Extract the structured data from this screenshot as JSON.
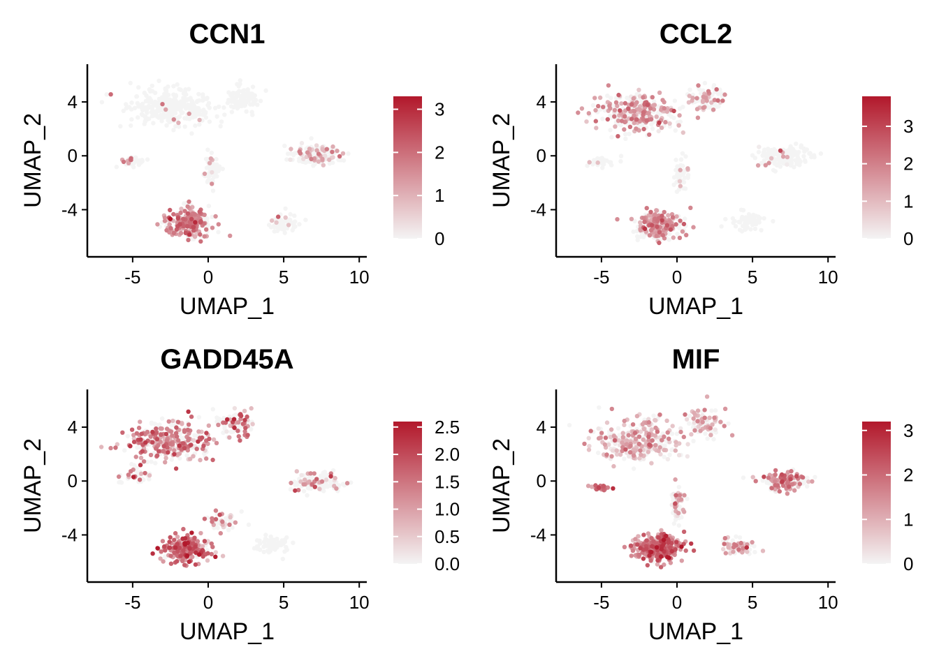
{
  "colors": {
    "low": "#f4f4f4",
    "high": "#b2182b",
    "axis": "#000000"
  },
  "chart_data": [
    {
      "type": "scatter",
      "title": "CCN1",
      "xlabel": "UMAP_1",
      "ylabel": "UMAP_2",
      "xlim": [
        -8,
        10.5
      ],
      "ylim": [
        -7.5,
        6.8
      ],
      "xticks": [
        "-5",
        "0",
        "5",
        "10"
      ],
      "yticks": [
        "4",
        "0",
        "-4"
      ],
      "legend": {
        "max": 3.3,
        "ticks": [
          "3",
          "2",
          "1",
          "0"
        ]
      },
      "clusters": [
        {
          "x": -2.5,
          "y": 3.6,
          "sx": 2.3,
          "sy": 1.1,
          "n": 320,
          "expr_frac": 0.02,
          "expr_mean": 1.5
        },
        {
          "x": 2.2,
          "y": 4.3,
          "sx": 1.0,
          "sy": 0.8,
          "n": 90,
          "expr_frac": 0.02,
          "expr_mean": 1.5
        },
        {
          "x": -5.0,
          "y": -0.4,
          "sx": 0.8,
          "sy": 0.3,
          "n": 30,
          "expr_frac": 0.3,
          "expr_mean": 1.6
        },
        {
          "x": 0.3,
          "y": -1.2,
          "sx": 0.4,
          "sy": 1.1,
          "n": 50,
          "expr_frac": 0.05,
          "expr_mean": 1.0
        },
        {
          "x": -1.2,
          "y": -5.0,
          "sx": 1.3,
          "sy": 0.9,
          "n": 240,
          "expr_frac": 0.75,
          "expr_mean": 1.6
        },
        {
          "x": 7.2,
          "y": 0.0,
          "sx": 1.4,
          "sy": 0.6,
          "n": 140,
          "expr_frac": 0.35,
          "expr_mean": 1.1
        },
        {
          "x": 5.1,
          "y": -5.0,
          "sx": 0.9,
          "sy": 0.5,
          "n": 60,
          "expr_frac": 0.15,
          "expr_mean": 1.0
        }
      ]
    },
    {
      "type": "scatter",
      "title": "CCL2",
      "xlabel": "UMAP_1",
      "ylabel": "UMAP_2",
      "xlim": [
        -8,
        10.5
      ],
      "ylim": [
        -7.5,
        6.8
      ],
      "xticks": [
        "-5",
        "0",
        "5",
        "10"
      ],
      "yticks": [
        "4",
        "0",
        "-4"
      ],
      "legend": {
        "max": 3.8,
        "ticks": [
          "3",
          "2",
          "1",
          "0"
        ]
      },
      "clusters": [
        {
          "x": -2.5,
          "y": 3.2,
          "sx": 2.3,
          "sy": 1.2,
          "n": 320,
          "expr_frac": 0.5,
          "expr_mean": 1.5
        },
        {
          "x": 2.0,
          "y": 4.2,
          "sx": 1.0,
          "sy": 0.8,
          "n": 90,
          "expr_frac": 0.35,
          "expr_mean": 1.4
        },
        {
          "x": -5.0,
          "y": -0.4,
          "sx": 0.8,
          "sy": 0.3,
          "n": 30,
          "expr_frac": 0.15,
          "expr_mean": 1.0
        },
        {
          "x": 0.3,
          "y": -1.4,
          "sx": 0.4,
          "sy": 1.1,
          "n": 50,
          "expr_frac": 0.1,
          "expr_mean": 1.0
        },
        {
          "x": -1.2,
          "y": -5.2,
          "sx": 1.3,
          "sy": 0.9,
          "n": 240,
          "expr_frac": 0.55,
          "expr_mean": 1.6
        },
        {
          "x": 7.2,
          "y": -0.1,
          "sx": 1.4,
          "sy": 0.6,
          "n": 140,
          "expr_frac": 0.1,
          "expr_mean": 1.0
        },
        {
          "x": 4.8,
          "y": -4.8,
          "sx": 1.0,
          "sy": 0.6,
          "n": 60,
          "expr_frac": 0.0,
          "expr_mean": 0.5
        }
      ]
    },
    {
      "type": "scatter",
      "title": "GADD45A",
      "xlabel": "UMAP_1",
      "ylabel": "UMAP_2",
      "xlim": [
        -8,
        10.5
      ],
      "ylim": [
        -7.5,
        6.8
      ],
      "xticks": [
        "-5",
        "0",
        "5",
        "10"
      ],
      "yticks": [
        "4",
        "0",
        "-4"
      ],
      "legend": {
        "max": 2.6,
        "ticks": [
          "2.5",
          "2.0",
          "1.5",
          "1.0",
          "0.5",
          "0.0"
        ]
      },
      "clusters": [
        {
          "x": -2.5,
          "y": 3.0,
          "sx": 2.3,
          "sy": 1.2,
          "n": 320,
          "expr_frac": 0.6,
          "expr_mean": 1.2
        },
        {
          "x": 1.8,
          "y": 4.2,
          "sx": 1.0,
          "sy": 0.9,
          "n": 90,
          "expr_frac": 0.55,
          "expr_mean": 1.2
        },
        {
          "x": -5.0,
          "y": 0.5,
          "sx": 1.0,
          "sy": 0.6,
          "n": 40,
          "expr_frac": 0.3,
          "expr_mean": 1.0
        },
        {
          "x": 1.0,
          "y": -3.0,
          "sx": 1.0,
          "sy": 0.6,
          "n": 50,
          "expr_frac": 0.4,
          "expr_mean": 1.1
        },
        {
          "x": -1.5,
          "y": -5.0,
          "sx": 1.3,
          "sy": 0.9,
          "n": 240,
          "expr_frac": 0.85,
          "expr_mean": 1.4
        },
        {
          "x": 7.2,
          "y": -0.1,
          "sx": 1.4,
          "sy": 0.6,
          "n": 140,
          "expr_frac": 0.25,
          "expr_mean": 1.0
        },
        {
          "x": 4.2,
          "y": -4.8,
          "sx": 1.0,
          "sy": 0.6,
          "n": 60,
          "expr_frac": 0.0,
          "expr_mean": 0.5
        }
      ]
    },
    {
      "type": "scatter",
      "title": "MIF",
      "xlabel": "UMAP_1",
      "ylabel": "UMAP_2",
      "xlim": [
        -8,
        10.5
      ],
      "ylim": [
        -7.5,
        6.8
      ],
      "xticks": [
        "-5",
        "0",
        "5",
        "10"
      ],
      "yticks": [
        "4",
        "0",
        "-4"
      ],
      "legend": {
        "max": 3.2,
        "ticks": [
          "3",
          "2",
          "1",
          "0"
        ]
      },
      "clusters": [
        {
          "x": -2.5,
          "y": 3.0,
          "sx": 2.3,
          "sy": 1.2,
          "n": 320,
          "expr_frac": 0.7,
          "expr_mean": 0.8
        },
        {
          "x": 1.8,
          "y": 4.2,
          "sx": 1.0,
          "sy": 0.9,
          "n": 90,
          "expr_frac": 0.5,
          "expr_mean": 0.8
        },
        {
          "x": -5.2,
          "y": -0.5,
          "sx": 0.6,
          "sy": 0.2,
          "n": 30,
          "expr_frac": 0.9,
          "expr_mean": 1.6
        },
        {
          "x": 0.0,
          "y": -1.8,
          "sx": 0.4,
          "sy": 1.2,
          "n": 60,
          "expr_frac": 0.5,
          "expr_mean": 1.0
        },
        {
          "x": -1.2,
          "y": -5.0,
          "sx": 1.4,
          "sy": 0.9,
          "n": 260,
          "expr_frac": 0.95,
          "expr_mean": 1.8
        },
        {
          "x": 7.2,
          "y": 0.0,
          "sx": 1.3,
          "sy": 0.6,
          "n": 140,
          "expr_frac": 0.6,
          "expr_mean": 1.4
        },
        {
          "x": 4.0,
          "y": -4.9,
          "sx": 1.0,
          "sy": 0.5,
          "n": 60,
          "expr_frac": 0.6,
          "expr_mean": 1.3
        }
      ]
    }
  ]
}
